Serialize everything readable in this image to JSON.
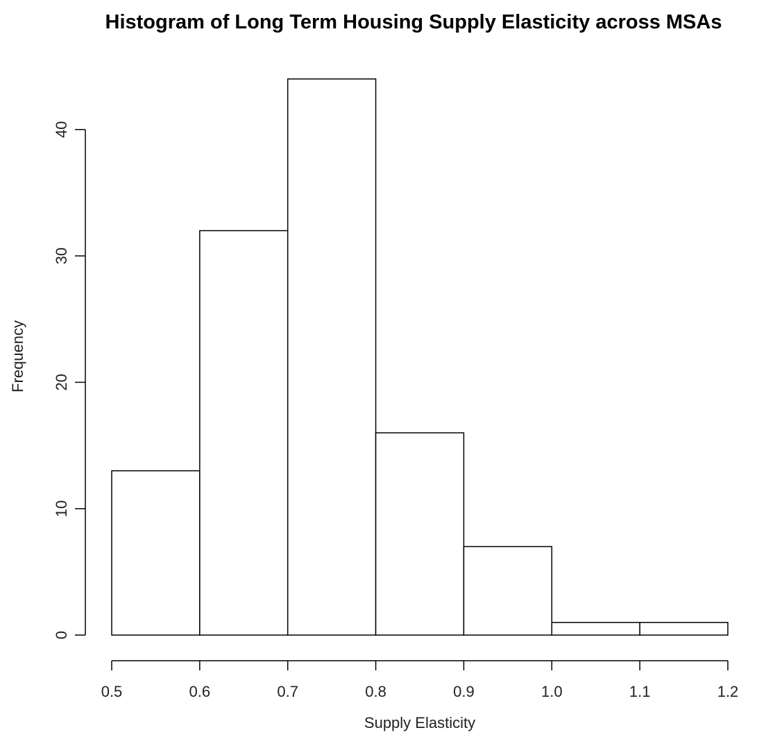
{
  "chart_data": {
    "type": "histogram",
    "title": "Histogram of Long Term Housing Supply Elasticity across MSAs",
    "xlabel": "Supply Elasticity",
    "ylabel": "Frequency",
    "bins": [
      {
        "from": 0.5,
        "to": 0.6,
        "count": 13
      },
      {
        "from": 0.6,
        "to": 0.7,
        "count": 32
      },
      {
        "from": 0.7,
        "to": 0.8,
        "count": 44
      },
      {
        "from": 0.8,
        "to": 0.9,
        "count": 16
      },
      {
        "from": 0.9,
        "to": 1.0,
        "count": 7
      },
      {
        "from": 1.0,
        "to": 1.1,
        "count": 1
      },
      {
        "from": 1.1,
        "to": 1.2,
        "count": 1
      }
    ],
    "xticks": [
      "0.5",
      "0.6",
      "0.7",
      "0.8",
      "0.9",
      "1.0",
      "1.1",
      "1.2"
    ],
    "yticks": [
      "0",
      "10",
      "20",
      "30",
      "40"
    ],
    "xlim": [
      0.5,
      1.2
    ],
    "ylim": [
      0,
      44
    ],
    "grid": false,
    "legend": "none"
  }
}
